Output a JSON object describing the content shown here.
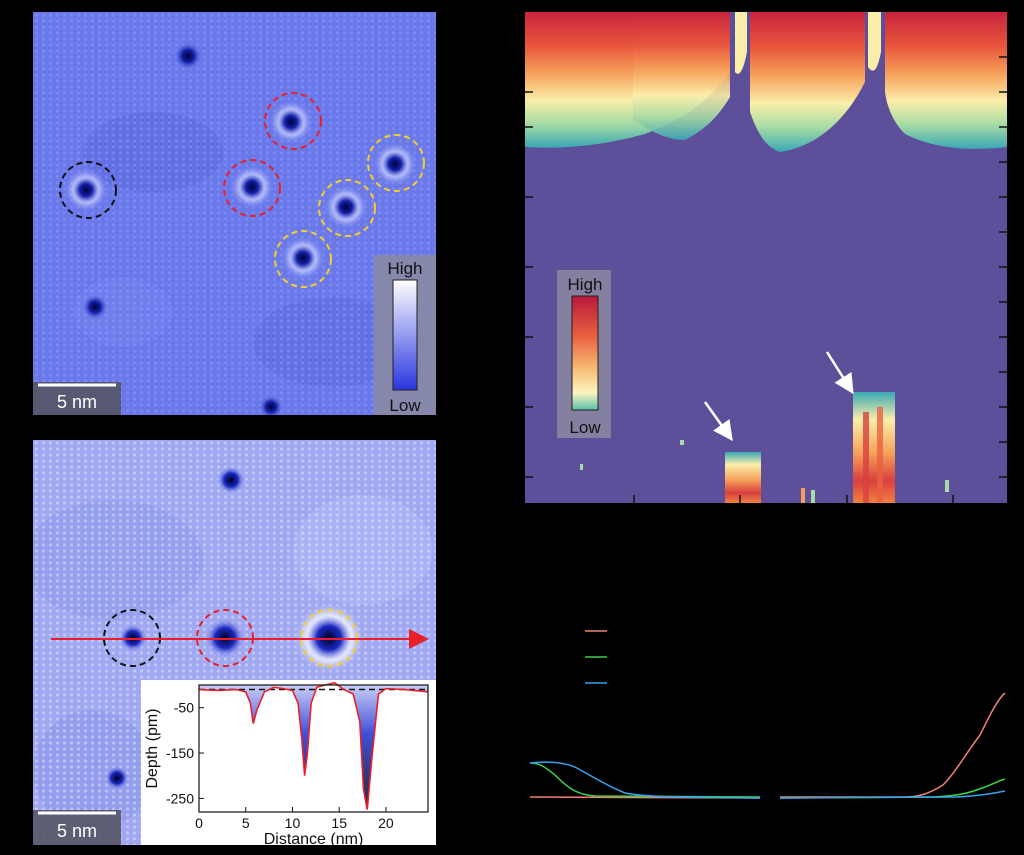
{
  "panel_a": {
    "scale_bar": "5 nm",
    "colorbar_high": "High",
    "colorbar_low": "Low"
  },
  "panel_b": {
    "scale_bar": "5 nm"
  },
  "panel_c": {
    "colorbar_high": "High",
    "colorbar_low": "Low"
  },
  "panel_d": {
    "legend_title": "",
    "legend_entries": [
      "",
      "",
      ""
    ]
  },
  "colors": {
    "stm_bg": "#6a78ea",
    "map_bg": "#5e4f9a",
    "red_circle": "#e8202a",
    "yellow_circle": "#f2cf2a",
    "black_circle": "#111111",
    "arrow_red": "#e8202a",
    "trace_red": "#f08278",
    "trace_green": "#3cd24a",
    "trace_blue": "#38a4f0"
  },
  "chart_data": {
    "type": "line",
    "title": "",
    "xlabel": "Distance (nm)",
    "ylabel": "Depth (pm)",
    "xlim": [
      0,
      24.5
    ],
    "ylim": [
      -280,
      0
    ],
    "xticks": [
      0,
      5,
      10,
      15,
      20
    ],
    "yticks": [
      -50,
      -150,
      -250
    ],
    "series": [
      {
        "name": "",
        "x": [
          0,
          2,
          4,
          5,
          5.5,
          5.8,
          6.2,
          7,
          8,
          9,
          10,
          10.6,
          11.0,
          11.3,
          11.6,
          12,
          12.6,
          13.5,
          14.5,
          15.5,
          16.5,
          17.2,
          17.6,
          18.0,
          18.5,
          19.2,
          20,
          22,
          24.5
        ],
        "y": [
          -10,
          -12,
          -10,
          -15,
          -40,
          -85,
          -55,
          -15,
          -5,
          -8,
          -12,
          -40,
          -120,
          -200,
          -150,
          -40,
          -5,
          0,
          5,
          -10,
          -20,
          -80,
          -230,
          -275,
          -160,
          -20,
          -8,
          -10,
          -15
        ]
      }
    ]
  }
}
